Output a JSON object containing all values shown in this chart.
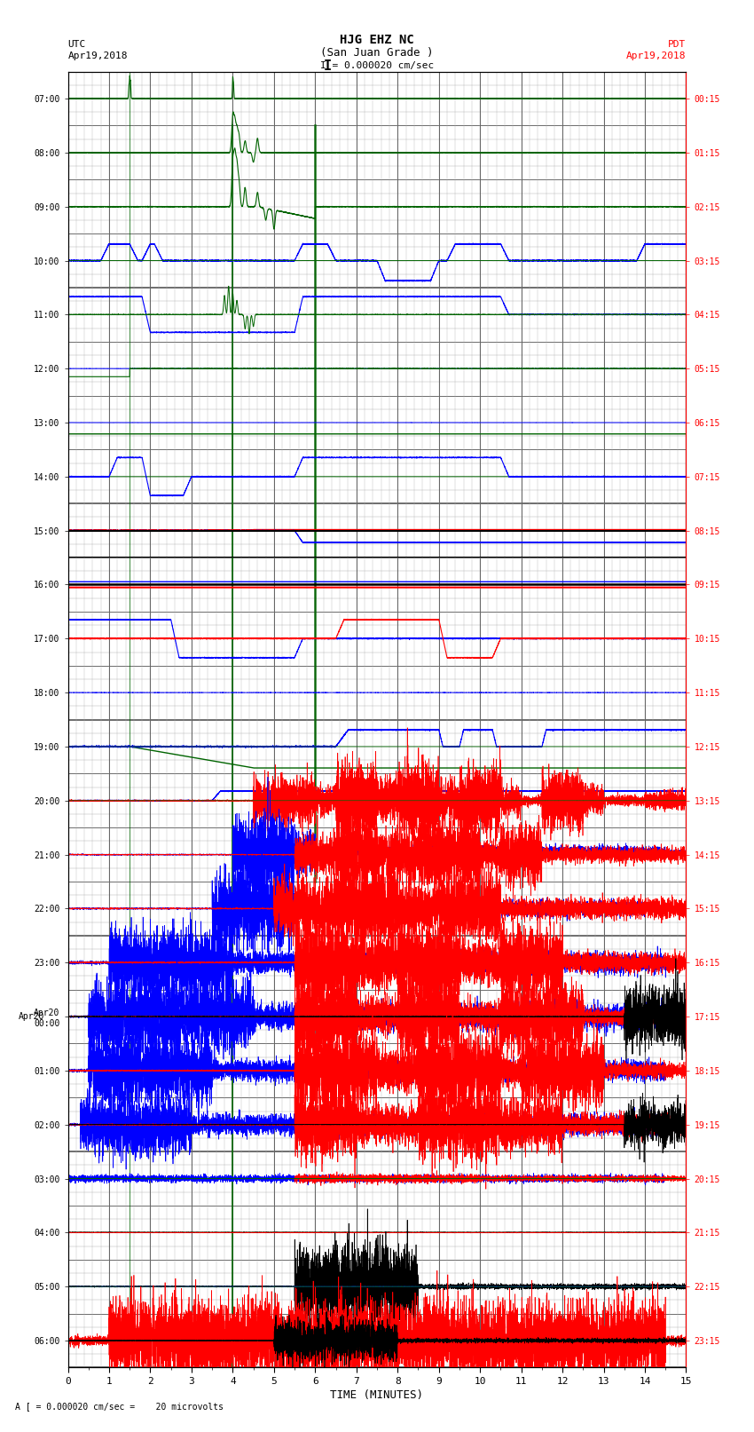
{
  "title_line1": "HJG EHZ NC",
  "title_line2": "(San Juan Grade )",
  "title_scale": "I = 0.000020 cm/sec",
  "label_left_top": "UTC",
  "label_left_date": "Apr19,2018",
  "label_right_top": "PDT",
  "label_right_date": "Apr19,2018",
  "xlabel": "TIME (MINUTES)",
  "footer": "A [ = 0.000020 cm/sec =    20 microvolts",
  "xlim": [
    0,
    15
  ],
  "xticks": [
    0,
    1,
    2,
    3,
    4,
    5,
    6,
    7,
    8,
    9,
    10,
    11,
    12,
    13,
    14,
    15
  ],
  "ytick_left_labels": [
    "07:00",
    "08:00",
    "09:00",
    "10:00",
    "11:00",
    "12:00",
    "13:00",
    "14:00",
    "15:00",
    "16:00",
    "17:00",
    "18:00",
    "19:00",
    "20:00",
    "21:00",
    "22:00",
    "23:00",
    "Apr20\n00:00",
    "01:00",
    "02:00",
    "03:00",
    "04:00",
    "05:00",
    "06:00"
  ],
  "ytick_right_labels": [
    "00:15",
    "01:15",
    "02:15",
    "03:15",
    "04:15",
    "05:15",
    "06:15",
    "07:15",
    "08:15",
    "09:15",
    "10:15",
    "11:15",
    "12:15",
    "13:15",
    "14:15",
    "15:15",
    "16:15",
    "17:15",
    "18:15",
    "19:15",
    "20:15",
    "21:15",
    "22:15",
    "23:15"
  ],
  "n_rows": 24,
  "bg_color": "#ffffff",
  "grid_color_major": "#555555",
  "grid_color_minor": "#aaaaaa",
  "fig_width": 8.5,
  "fig_height": 16.13
}
